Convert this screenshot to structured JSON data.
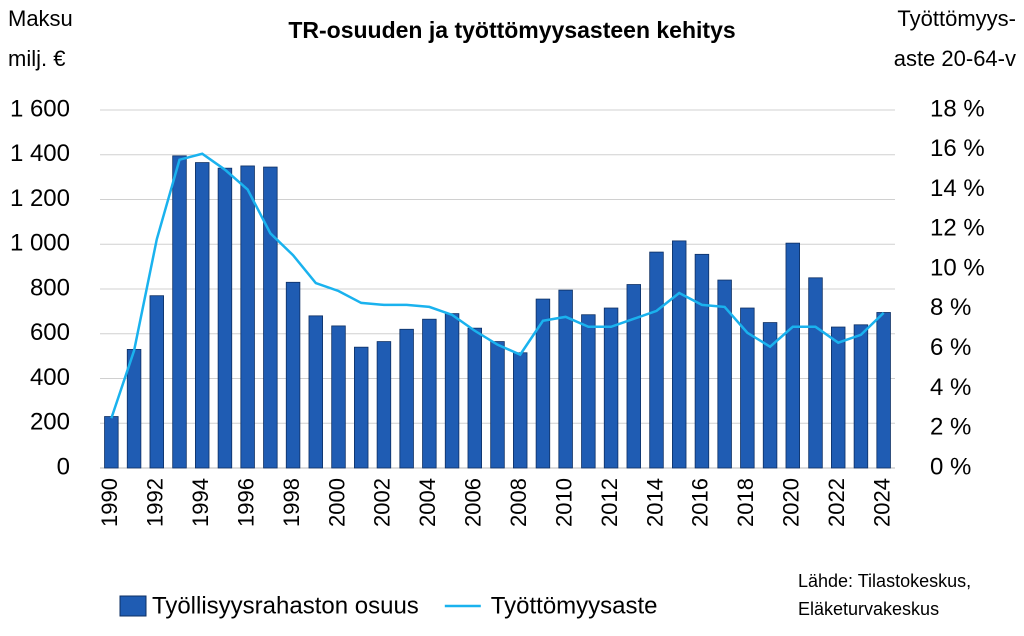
{
  "chart_data": {
    "type": "bar_line",
    "title": "TR-osuuden ja työttömyysasteen kehitys",
    "y_label": [
      "Maksu",
      "milj. €"
    ],
    "y2_label": [
      "Työttömyys-",
      "aste 20-64-v"
    ],
    "source": [
      "Lähde: Tilastokeskus,",
      "Eläketurvakeskus"
    ],
    "categories": [
      "1990",
      null,
      "1992",
      null,
      "1994",
      null,
      "1996",
      null,
      "1998",
      null,
      "2000",
      null,
      "2002",
      null,
      "2004",
      null,
      "2006",
      null,
      "2008",
      null,
      "2010",
      null,
      "2012",
      null,
      "2014",
      null,
      "2016",
      null,
      "2018",
      null,
      "2020",
      null,
      "2022",
      null,
      "2024"
    ],
    "series": [
      {
        "name": "Työllisyysrahaston osuus",
        "type": "bar",
        "color": "#1f5cb3",
        "values": [
          230,
          530,
          770,
          1395,
          1365,
          1340,
          1350,
          1345,
          830,
          680,
          635,
          540,
          565,
          620,
          665,
          690,
          625,
          565,
          515,
          755,
          795,
          685,
          715,
          820,
          965,
          1015,
          955,
          840,
          715,
          650,
          1005,
          850,
          630,
          640,
          695
        ]
      },
      {
        "name": "Työttömyysaste",
        "type": "line",
        "axis": "y2",
        "color": "#1ab2ee",
        "values": [
          2.5,
          5.9,
          11.5,
          15.5,
          15.8,
          15.0,
          14.0,
          11.8,
          10.7,
          9.3,
          8.9,
          8.3,
          8.2,
          8.2,
          8.1,
          7.7,
          6.9,
          6.2,
          5.7,
          7.4,
          7.6,
          7.1,
          7.1,
          7.5,
          7.9,
          8.8,
          8.2,
          8.1,
          6.8,
          6.1,
          7.1,
          7.1,
          6.3,
          6.7,
          7.8
        ]
      }
    ],
    "ylim": [
      0,
      1600
    ],
    "yticks": [
      0,
      200,
      400,
      600,
      800,
      {
        "value": 1000,
        "label": "1 000"
      },
      {
        "value": 1200,
        "label": "1 200"
      },
      {
        "value": 1400,
        "label": "1 400"
      },
      {
        "value": 1600,
        "label": "1 600"
      }
    ],
    "y2lim": [
      0,
      18
    ],
    "y2ticks": [
      {
        "value": 0,
        "label": "0 %"
      },
      {
        "value": 2,
        "label": "2 %"
      },
      {
        "value": 4,
        "label": "4 %"
      },
      {
        "value": 6,
        "label": "6 %"
      },
      {
        "value": 8,
        "label": "8 %"
      },
      {
        "value": 10,
        "label": "10 %"
      },
      {
        "value": 12,
        "label": "12 %"
      },
      {
        "value": 14,
        "label": "14 %"
      },
      {
        "value": 16,
        "label": "16 %"
      },
      {
        "value": 18,
        "label": "18 %"
      }
    ],
    "grid": true
  }
}
